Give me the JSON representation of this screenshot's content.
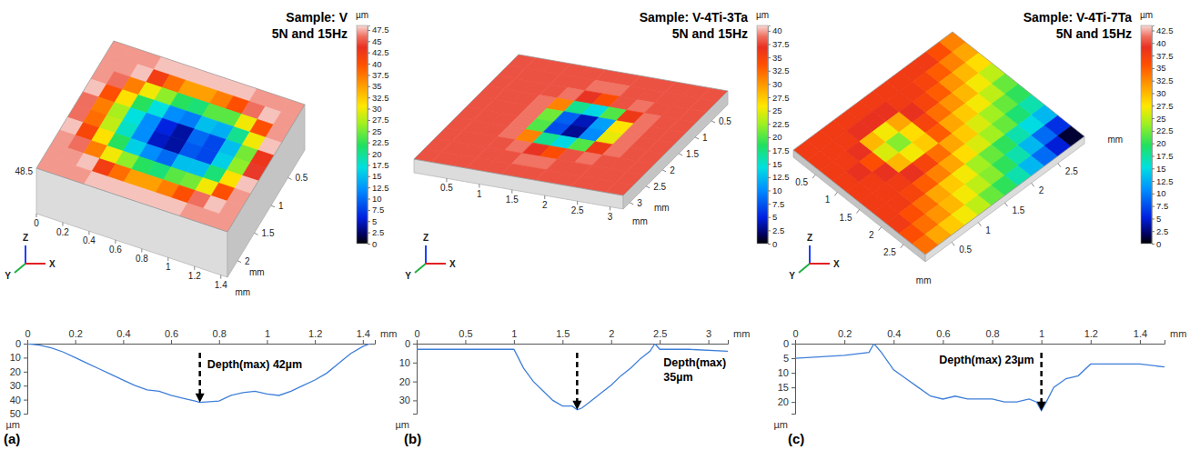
{
  "chart_data": [
    {
      "type": "heatmap",
      "title": "Sample: V",
      "subtitle": "5N and 15Hz",
      "xlim": [
        0,
        1.45
      ],
      "ylim": [
        0,
        2.3
      ],
      "xticks": [
        0,
        0.2,
        0.4,
        0.6,
        0.8,
        1,
        1.2,
        1.4
      ],
      "yticks": [
        0.5,
        1,
        1.5,
        2
      ],
      "xlabel": "mm",
      "ylabel": "mm",
      "z_label": 48.5,
      "axes_icon": [
        "Z",
        "Y",
        "X"
      ],
      "z": [
        [
          47,
          47,
          47,
          48,
          48,
          48,
          48,
          48,
          48,
          47,
          47,
          47
        ],
        [
          47,
          47,
          48,
          42,
          38,
          35,
          35,
          37,
          40,
          46,
          48,
          47
        ],
        [
          47,
          46,
          37,
          30,
          26,
          22,
          21,
          24,
          24,
          30,
          40,
          47
        ],
        [
          48,
          40,
          31,
          22,
          17,
          12,
          11,
          15,
          14,
          20,
          30,
          48
        ],
        [
          46,
          37,
          27,
          17,
          12,
          6,
          4,
          10,
          8,
          15,
          25,
          43
        ],
        [
          46,
          38,
          28,
          18,
          12,
          5,
          4,
          9,
          8,
          16,
          26,
          44
        ],
        [
          48,
          41,
          31,
          22,
          16,
          12,
          10,
          15,
          15,
          21,
          31,
          48
        ],
        [
          47,
          46,
          37,
          30,
          26,
          22,
          21,
          24,
          25,
          30,
          40,
          47
        ],
        [
          47,
          47,
          48,
          42,
          38,
          35,
          35,
          37,
          40,
          46,
          48,
          47
        ],
        [
          47,
          47,
          47,
          48,
          48,
          48,
          48,
          48,
          48,
          47,
          47,
          47
        ]
      ],
      "colorbar": {
        "label": "µm",
        "range": [
          0,
          48.5
        ],
        "ticks": [
          0,
          2.5,
          5,
          7.5,
          10,
          12.5,
          15,
          17.5,
          20,
          22.5,
          25,
          27.5,
          30,
          32.5,
          35,
          37.5,
          40,
          42.5,
          45,
          47.5
        ]
      }
    },
    {
      "type": "line",
      "panel": "(a)",
      "color": "#3f7fd9",
      "x": [
        0,
        0.05,
        0.1,
        0.15,
        0.2,
        0.25,
        0.3,
        0.35,
        0.4,
        0.45,
        0.5,
        0.55,
        0.6,
        0.65,
        0.7,
        0.72,
        0.8,
        0.85,
        0.9,
        0.95,
        1.0,
        1.05,
        1.1,
        1.15,
        1.2,
        1.25,
        1.3,
        1.35,
        1.4,
        1.43
      ],
      "values": [
        0,
        1,
        3,
        6,
        10,
        14,
        18,
        22,
        26,
        30,
        33,
        34,
        37,
        39,
        41,
        42,
        41,
        37,
        35,
        34,
        36,
        37,
        34,
        30,
        26,
        21,
        14,
        7,
        2,
        0
      ],
      "xlim": [
        0,
        1.45
      ],
      "ylim": [
        0,
        50
      ],
      "xticks": [
        0,
        0.2,
        0.4,
        0.6,
        0.8,
        1,
        1.2,
        1.4
      ],
      "yticks": [
        0,
        10,
        20,
        30,
        40,
        50
      ],
      "xlabel": "mm",
      "ylabel": "µm",
      "annotation": {
        "text": [
          "Depth(max) 42µm"
        ],
        "x": 0.72,
        "y": 42
      }
    },
    {
      "type": "heatmap",
      "title": "Sample: V-4Ti-3Ta",
      "subtitle": "5N and 15Hz",
      "xlim": [
        0,
        3.2
      ],
      "ylim": [
        0,
        3.2
      ],
      "xticks": [
        0.5,
        1,
        1.5,
        2,
        2.5,
        3
      ],
      "yticks": [
        0.5,
        1,
        1.5,
        2,
        2.5,
        3
      ],
      "xlabel": "mm",
      "ylabel": "mm",
      "axes_icon": [
        "Z",
        "Y",
        "X"
      ],
      "z": [
        [
          38,
          38,
          38,
          38,
          38,
          38,
          38,
          38,
          38,
          38,
          38,
          38
        ],
        [
          38,
          38,
          38,
          38,
          38,
          39,
          39,
          38,
          38,
          38,
          38,
          38
        ],
        [
          38,
          38,
          38,
          38,
          39,
          37,
          34,
          38,
          39,
          38,
          38,
          38
        ],
        [
          38,
          38,
          38,
          39,
          31,
          17,
          14,
          20,
          36,
          39,
          38,
          38
        ],
        [
          38,
          38,
          38,
          39,
          21,
          8,
          4,
          11,
          26,
          39,
          38,
          38
        ],
        [
          38,
          38,
          38,
          39,
          20,
          7,
          3,
          10,
          25,
          39,
          38,
          38
        ],
        [
          38,
          38,
          38,
          39,
          31,
          17,
          14,
          20,
          36,
          39,
          38,
          38
        ],
        [
          38,
          38,
          38,
          38,
          39,
          37,
          34,
          38,
          39,
          38,
          38,
          38
        ],
        [
          38,
          38,
          38,
          38,
          38,
          39,
          39,
          38,
          38,
          38,
          38,
          38
        ],
        [
          38,
          38,
          38,
          38,
          38,
          38,
          38,
          38,
          38,
          38,
          38,
          38
        ]
      ],
      "colorbar": {
        "label": "µm",
        "range": [
          0,
          41
        ],
        "ticks": [
          0,
          2.5,
          5,
          7.5,
          10,
          12.5,
          15,
          17.5,
          20,
          22.5,
          25,
          27.5,
          30,
          32.5,
          35,
          37.5,
          40
        ]
      }
    },
    {
      "type": "line",
      "panel": "(b)",
      "color": "#3f7fd9",
      "x": [
        0,
        0.5,
        0.9,
        1.0,
        1.05,
        1.1,
        1.2,
        1.3,
        1.4,
        1.5,
        1.6,
        1.65,
        1.7,
        1.8,
        1.9,
        2.0,
        2.1,
        2.2,
        2.3,
        2.4,
        2.45,
        2.5,
        2.8,
        3.2
      ],
      "values": [
        3,
        3,
        3,
        3,
        8,
        13,
        20,
        25,
        30,
        33,
        33,
        35,
        34,
        30,
        26,
        22,
        17,
        13,
        8,
        4,
        0,
        3,
        3,
        4
      ],
      "xlim": [
        0,
        3.2
      ],
      "ylim": [
        0,
        37
      ],
      "xticks": [
        0,
        0.5,
        1,
        1.5,
        2,
        2.5,
        3
      ],
      "yticks": [
        0,
        10,
        20,
        30
      ],
      "xlabel": "mm",
      "ylabel": "µm",
      "annotation": {
        "text": [
          "Depth(max)",
          "35µm"
        ],
        "x": 1.65,
        "y": 35
      }
    },
    {
      "type": "heatmap",
      "title": "Sample: V-4Ti-7Ta",
      "subtitle": "5N and 15Hz",
      "xlim": [
        0,
        3
      ],
      "ylim": [
        0,
        3
      ],
      "xticks": [
        0.5,
        1,
        1.5,
        2,
        2.5
      ],
      "yticks": [
        0.5,
        1,
        1.5,
        2,
        2.5
      ],
      "xlabel": "mm",
      "ylabel": "mm",
      "axes_icon": [
        "Z",
        "Y",
        "X"
      ],
      "z": [
        [
          38,
          38,
          38,
          38,
          38,
          38,
          38,
          38,
          38,
          38,
          36,
          33
        ],
        [
          38,
          38,
          38,
          39,
          39,
          39,
          38,
          38,
          37,
          35,
          33,
          31
        ],
        [
          38,
          38,
          39,
          30,
          27,
          31,
          39,
          37,
          35,
          32,
          30,
          28
        ],
        [
          38,
          39,
          36,
          26,
          23,
          28,
          37,
          34,
          32,
          30,
          27,
          25
        ],
        [
          38,
          38,
          39,
          30,
          27,
          29,
          35,
          31,
          29,
          27,
          25,
          22
        ],
        [
          38,
          38,
          38,
          39,
          37,
          34,
          31,
          29,
          26,
          24,
          22,
          20
        ],
        [
          38,
          38,
          37,
          35,
          33,
          31,
          28,
          26,
          24,
          22,
          19,
          17
        ],
        [
          38,
          36,
          34,
          31,
          29,
          27,
          24,
          22,
          20,
          17,
          15,
          13
        ],
        [
          36,
          34,
          32,
          30,
          27,
          25,
          23,
          20,
          17,
          13,
          9,
          6
        ],
        [
          34,
          31,
          29,
          27,
          25,
          22,
          20,
          17,
          13,
          9,
          5,
          1
        ]
      ],
      "colorbar": {
        "label": "µm",
        "range": [
          0,
          43.5
        ],
        "ticks": [
          0,
          2.5,
          5,
          7.5,
          10,
          12.5,
          15,
          17.5,
          20,
          22.5,
          25,
          27.5,
          30,
          32.5,
          35,
          37.5,
          40,
          42.5
        ]
      }
    },
    {
      "type": "line",
      "panel": "(c)",
      "color": "#3f7fd9",
      "x": [
        0,
        0.2,
        0.3,
        0.32,
        0.35,
        0.4,
        0.45,
        0.5,
        0.55,
        0.6,
        0.65,
        0.7,
        0.8,
        0.85,
        0.9,
        0.95,
        0.98,
        1.0,
        1.02,
        1.05,
        1.1,
        1.15,
        1.2,
        1.3,
        1.4,
        1.5
      ],
      "values": [
        5,
        4,
        3,
        0,
        3,
        9,
        12,
        15,
        18,
        19,
        18,
        19,
        19,
        20,
        20,
        19,
        20,
        23,
        20,
        15,
        12,
        11,
        7,
        7,
        7,
        8
      ],
      "xlim": [
        0,
        1.5
      ],
      "ylim": [
        0,
        24
      ],
      "xticks": [
        0,
        0.2,
        0.4,
        0.6,
        0.8,
        1,
        1.2,
        1.4
      ],
      "yticks": [
        0,
        5,
        10,
        15,
        20
      ],
      "xlabel": "mm",
      "ylabel": "µm",
      "annotation": {
        "text": [
          "Depth(max) 23µm"
        ],
        "x": 1.0,
        "y": 23
      }
    }
  ]
}
